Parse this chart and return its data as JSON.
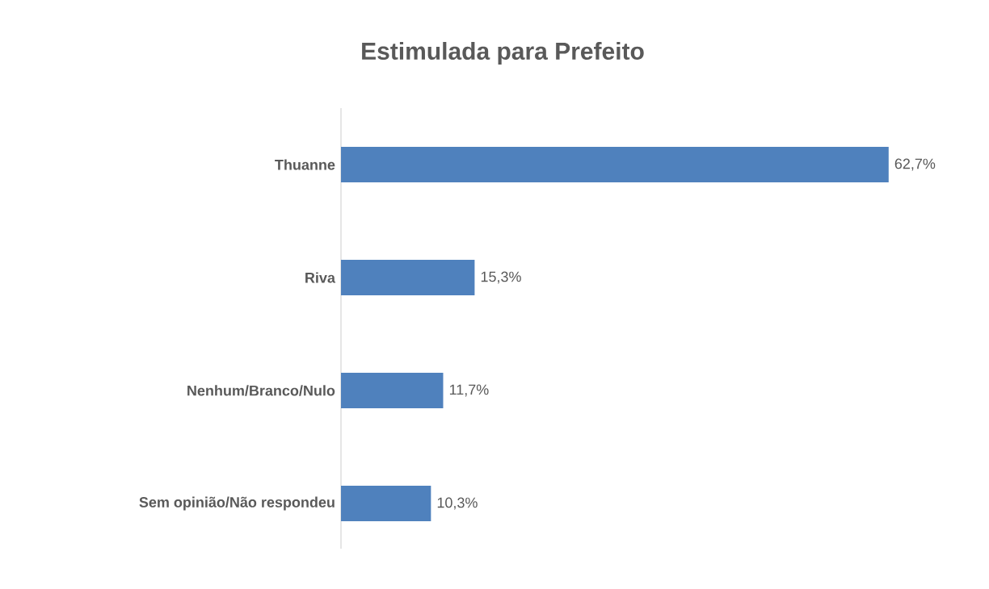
{
  "chart_data": {
    "type": "bar",
    "orientation": "horizontal",
    "title": "Estimulada para Prefeito",
    "categories": [
      "Thuanne",
      "Riva",
      "Nenhum/Branco/Nulo",
      "Sem opinião/Não respondeu"
    ],
    "values": [
      62.7,
      15.3,
      11.7,
      10.3
    ],
    "value_labels": [
      "62,7%",
      "15,3%",
      "11,7%",
      "10,3%"
    ],
    "color": "#4f81bd"
  }
}
